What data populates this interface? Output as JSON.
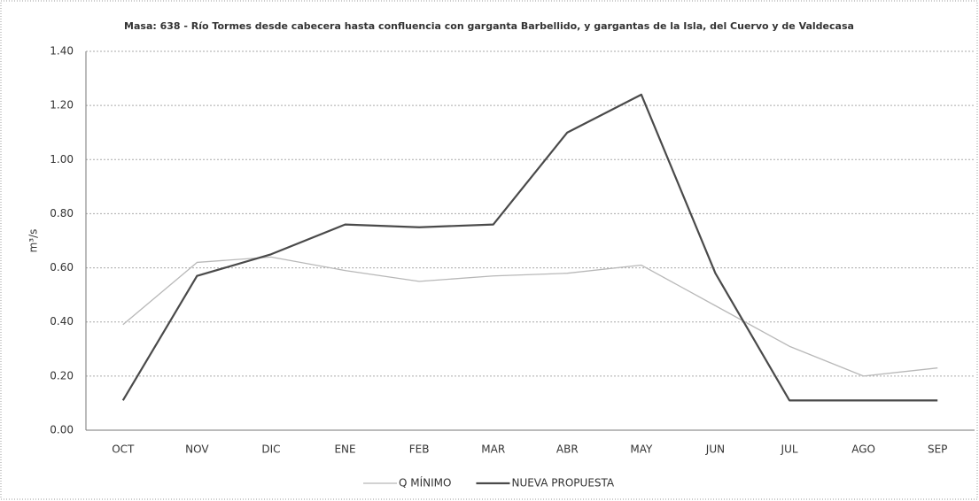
{
  "chart_data": {
    "type": "line",
    "title": "Masa: 638 - Río Tormes desde cabecera hasta confluencia con garganta Barbellido, y gargantas de la Isla, del Cuervo y de Valdecasa",
    "y_label": "m³/s",
    "categories": [
      "OCT",
      "NOV",
      "DIC",
      "ENE",
      "FEB",
      "MAR",
      "ABR",
      "MAY",
      "JUN",
      "JUL",
      "AGO",
      "SEP"
    ],
    "series": [
      {
        "name": "Q MÍNIMO",
        "color": "#b8b8b8",
        "values": [
          0.39,
          0.62,
          0.64,
          0.59,
          0.55,
          0.57,
          0.58,
          0.61,
          0.46,
          0.31,
          0.2,
          0.23
        ]
      },
      {
        "name": "NUEVA PROPUESTA",
        "color": "#4a4a4a",
        "values": [
          0.11,
          0.57,
          0.65,
          0.76,
          0.75,
          0.76,
          1.1,
          1.24,
          0.58,
          0.11,
          0.11,
          0.11
        ]
      }
    ],
    "ylim": [
      0,
      1.4
    ],
    "yticks": [
      {
        "value": 0,
        "label": "0.00"
      },
      {
        "value": 0.2,
        "label": "0.20"
      },
      {
        "value": 0.4,
        "label": "0.40"
      },
      {
        "value": 0.6,
        "label": "0.60"
      },
      {
        "value": 0.8,
        "label": "0.80"
      },
      {
        "value": 1.0,
        "label": "1.00"
      },
      {
        "value": 1.2,
        "label": "1.20"
      },
      {
        "value": 1.4,
        "label": "1.40"
      }
    ],
    "grid": true,
    "legend": "bottom"
  }
}
